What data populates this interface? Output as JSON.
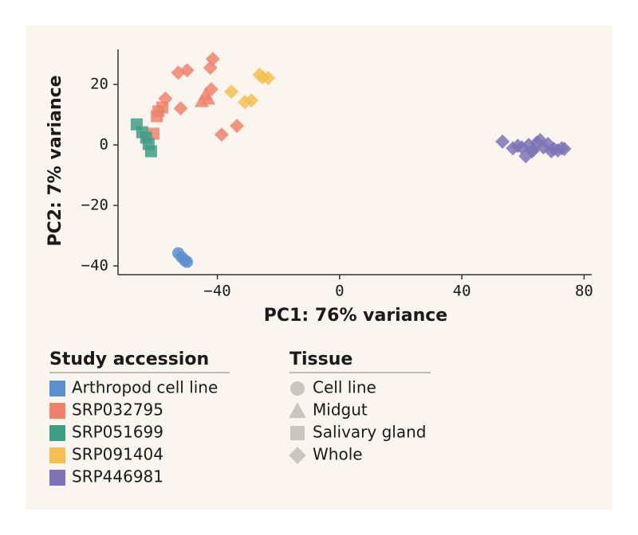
{
  "chart_data": {
    "type": "scatter",
    "x_label": "PC1: 76% variance",
    "y_label": "PC2: 7% variance",
    "xlim": [
      -72.5,
      82.5
    ],
    "ylim": [
      -42.9,
      31.6
    ],
    "xticks": [
      {
        "value": -40,
        "label": "−40"
      },
      0,
      40,
      80
    ],
    "yticks": [
      {
        "value": -40,
        "label": "−40"
      },
      {
        "value": -20,
        "label": "−20"
      },
      0,
      20
    ],
    "legend_title": "Study accession",
    "series": [
      {
        "name": "Arthropod cell line",
        "color": "#5b8fd0",
        "x": [
          -52.8,
          -51.7,
          -50.6,
          -49.9
        ],
        "y": [
          -35.8,
          -37.1,
          -38.2,
          -38.7
        ],
        "shapes": [
          "circle",
          "circle",
          "circle",
          "circle"
        ]
      },
      {
        "name": "SRP032795",
        "color": "#f0826b",
        "x": [
          -57.0,
          -52.8,
          -49.9,
          -41.5,
          -52.0,
          -42.3,
          -33.6,
          -38.6,
          -42.0,
          -45.1,
          -43.0,
          -43.8,
          -60.9,
          -59.8,
          -58.0,
          -59.3
        ],
        "y": [
          15.3,
          23.9,
          24.7,
          28.4,
          12.1,
          25.5,
          6.3,
          3.4,
          18.4,
          14.5,
          15.3,
          16.8,
          3.7,
          9.5,
          12.4,
          11.1
        ],
        "shapes": [
          "diamond",
          "diamond",
          "diamond",
          "diamond",
          "diamond",
          "diamond",
          "diamond",
          "diamond",
          "diamond",
          "triangle",
          "triangle",
          "triangle",
          "square",
          "square",
          "square",
          "square"
        ]
      },
      {
        "name": "SRP051699",
        "color": "#3e9e85",
        "x": [
          -66.4,
          -64.6,
          -63.3,
          -62.5,
          -61.7
        ],
        "y": [
          6.8,
          4.2,
          2.4,
          0.3,
          -2.1
        ],
        "shapes": [
          "square",
          "square",
          "square",
          "square",
          "square"
        ]
      },
      {
        "name": "SRP091404",
        "color": "#f5c04f",
        "x": [
          -35.4,
          -31.0,
          -28.9,
          -26.2,
          -25.2,
          -23.4
        ],
        "y": [
          17.6,
          14.2,
          14.7,
          23.2,
          22.4,
          22.1
        ],
        "shapes": [
          "diamond",
          "diamond",
          "diamond",
          "diamond",
          "diamond",
          "diamond"
        ]
      },
      {
        "name": "SRP446981",
        "color": "#7c74b6",
        "x": [
          53.3,
          56.7,
          58.3,
          59.6,
          60.9,
          61.9,
          63.3,
          64.6,
          65.6,
          66.7,
          68.2,
          69.3,
          70.1,
          71.4,
          72.7,
          73.5,
          63.0
        ],
        "y": [
          1.1,
          -1.1,
          -0.3,
          -0.8,
          -3.7,
          0,
          -1.6,
          0.8,
          1.6,
          -0.8,
          0.3,
          -2.1,
          -1.3,
          -1.8,
          -1.1,
          -1.3,
          -2.1
        ],
        "shapes": [
          "diamond",
          "diamond",
          "diamond",
          "diamond",
          "diamond",
          "diamond",
          "diamond",
          "diamond",
          "diamond",
          "diamond",
          "diamond",
          "diamond",
          "diamond",
          "diamond",
          "diamond",
          "diamond",
          "diamond"
        ]
      }
    ],
    "shape_legend": {
      "title": "Tissue",
      "items": [
        {
          "label": "Cell line",
          "shape": "circle"
        },
        {
          "label": "Midgut",
          "shape": "triangle"
        },
        {
          "label": "Salivary gland",
          "shape": "square"
        },
        {
          "label": "Whole",
          "shape": "diamond"
        }
      ]
    }
  }
}
